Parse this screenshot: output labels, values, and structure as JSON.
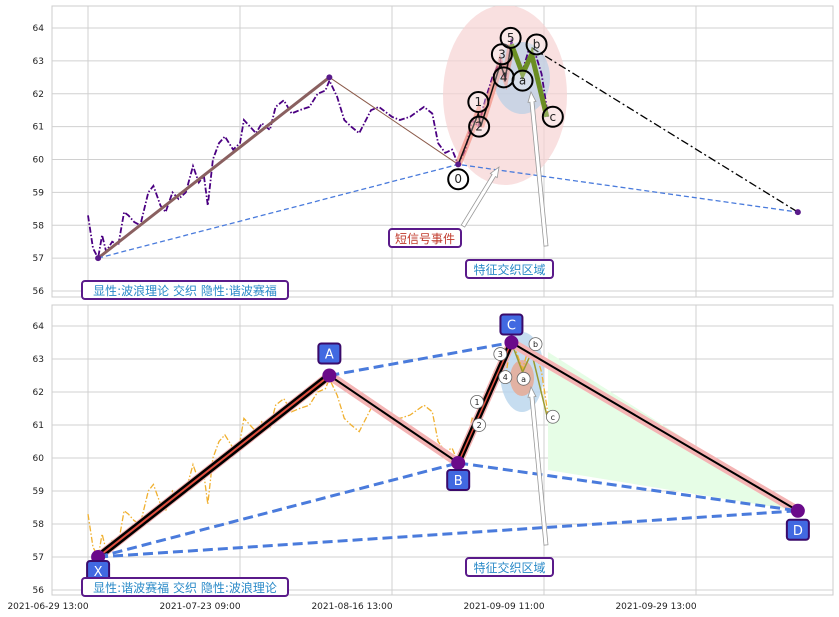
{
  "chart_data": [
    {
      "type": "line",
      "panel": "top",
      "ylim": [
        55.8,
        64.6
      ],
      "yticks": [
        56,
        57,
        58,
        59,
        60,
        61,
        62,
        63,
        64
      ],
      "grid": true,
      "colors": {
        "price": "#4b0082",
        "xab": "#8b5a4a",
        "xbd": "#4a7bdc",
        "wave": "#111111",
        "wave_impulse_halo": "#f08070",
        "wave_correction": "#6b8e23",
        "projection": "#000000",
        "zone_pink": "#f6d3d3",
        "zone_blue": "#b8cfe6"
      },
      "price_series": {
        "x": [
          "2021-06-29 13:00",
          "2021-06-30 08:00",
          "2021-07-01 03:00",
          "2021-07-01 18:00",
          "2021-07-02 09:00",
          "2021-07-03 08:00",
          "2021-07-04 07:00",
          "2021-07-05 05:00",
          "2021-07-05 21:00",
          "2021-07-06 19:00",
          "2021-07-07 18:00",
          "2021-07-09 00:00",
          "2021-07-09 19:00",
          "2021-07-10 22:00",
          "2021-07-11 17:00",
          "2021-07-12 19:00",
          "2021-07-13 18:00",
          "2021-07-14 21:00",
          "2021-07-16 00:00",
          "2021-07-16 22:00",
          "2021-07-17 17:00",
          "2021-07-18 08:00",
          "2021-07-19 03:00",
          "2021-07-20 02:00",
          "2021-07-21 00:00",
          "2021-07-22 07:00",
          "2021-07-23 09:00",
          "2021-07-24 00:00",
          "2021-07-24 23:00",
          "2021-07-25 22:00",
          "2021-07-26 20:00",
          "2021-07-28 03:00",
          "2021-07-29 01:00",
          "2021-07-30 08:00",
          "2021-07-31 14:00",
          "2021-08-01 20:00",
          "2021-08-03 10:00",
          "2021-08-04 17:00",
          "2021-08-05 23:00",
          "2021-08-06 14:00",
          "2021-08-07 20:00",
          "2021-08-08 23:00",
          "2021-08-10 01:00",
          "2021-08-11 08:00",
          "2021-08-13 05:00",
          "2021-08-14 11:00",
          "2021-08-16 13:00",
          "2021-08-17 19:00",
          "2021-08-19 09:00",
          "2021-08-21 14:00",
          "2021-08-22 21:00",
          "2021-08-23 19:00",
          "2021-08-24 22:00",
          "2021-08-26 00:00",
          "2021-08-26 23:00",
          "2021-08-28 02:00",
          "2021-08-29 04:00",
          "2021-08-30 03:00",
          "2021-08-31 05:00",
          "2021-09-01 08:00",
          "2021-09-02 14:00",
          "2021-09-03 09:00",
          "2021-09-04 08:00",
          "2021-09-05 03:00",
          "2021-09-06 02:00",
          "2021-09-07 00:00",
          "2021-09-08 03:00",
          "2021-09-09 02:00",
          "2021-09-10 00:00"
        ],
        "y": [
          58.3,
          57.3,
          57.0,
          57.7,
          57.2,
          57.5,
          57.4,
          58.4,
          58.3,
          58.1,
          58.0,
          59.0,
          59.2,
          58.6,
          58.4,
          59.0,
          58.8,
          59.0,
          59.8,
          59.3,
          59.5,
          58.6,
          60.0,
          60.5,
          60.7,
          60.3,
          60.5,
          61.2,
          61.0,
          60.8,
          61.1,
          60.9,
          61.6,
          61.8,
          61.4,
          61.5,
          61.6,
          62.0,
          62.1,
          62.4,
          61.9,
          61.2,
          61.0,
          60.8,
          61.5,
          61.6,
          61.3,
          61.2,
          61.3,
          61.6,
          61.4,
          60.5,
          60.2,
          60.3,
          59.85,
          60.3,
          61.2,
          61.0,
          61.8,
          62.5,
          63.0,
          62.4,
          63.6,
          63.2,
          62.7,
          63.3,
          63.2,
          62.6,
          61.3
        ]
      },
      "pivots": [
        {
          "x": "2021-07-01 03:00",
          "y": 57.0
        },
        {
          "x": "2021-08-06 14:00",
          "y": 62.5
        },
        {
          "x": "2021-08-26 23:00",
          "y": 59.85
        },
        {
          "x": "2021-10-13 00:00",
          "y": 58.4
        }
      ],
      "projection": [
        {
          "x": "2021-09-07 12:00",
          "y": 63.4
        },
        {
          "x": "2021-10-13 00:00",
          "y": 58.4
        }
      ],
      "wave_path": [
        {
          "x": "2021-08-26 23:00",
          "y": 59.85
        },
        {
          "x": "2021-08-30 03:00",
          "y": 61.4
        },
        {
          "x": "2021-08-30 12:00",
          "y": 61.0
        },
        {
          "x": "2021-09-02 14:00",
          "y": 62.9
        },
        {
          "x": "2021-09-03 09:00",
          "y": 62.5
        },
        {
          "x": "2021-09-04 08:00",
          "y": 63.5
        }
      ],
      "correction_path": [
        {
          "x": "2021-09-04 08:00",
          "y": 63.5
        },
        {
          "x": "2021-09-06 02:00",
          "y": 62.6
        },
        {
          "x": "2021-09-07 12:00",
          "y": 63.2
        },
        {
          "x": "2021-09-09 20:00",
          "y": 61.3
        }
      ],
      "wave_labels": [
        {
          "label": "0",
          "x": "2021-08-26 23:00",
          "y": 59.4
        },
        {
          "label": "1",
          "x": "2021-08-30 03:00",
          "y": 61.75
        },
        {
          "label": "2",
          "x": "2021-08-30 06:00",
          "y": 61.0
        },
        {
          "label": "3",
          "x": "2021-09-02 20:00",
          "y": 63.2
        },
        {
          "label": "4",
          "x": "2021-09-03 03:00",
          "y": 62.5
        },
        {
          "label": "5",
          "x": "2021-09-04 05:00",
          "y": 63.7
        },
        {
          "label": "a",
          "x": "2021-09-06 02:00",
          "y": 62.4
        },
        {
          "label": "b",
          "x": "2021-09-08 07:00",
          "y": 63.5
        },
        {
          "label": "c",
          "x": "2021-09-10 15:00",
          "y": 61.3
        }
      ],
      "annotations": {
        "signal": "短信号事件",
        "zone": "特征交织区域",
        "legend": "显性:波浪理论 交织 隐性:谐波赛福"
      }
    },
    {
      "type": "line",
      "panel": "bottom",
      "ylim": [
        55.8,
        64.6
      ],
      "yticks": [
        56,
        57,
        58,
        59,
        60,
        61,
        62,
        63,
        64
      ],
      "grid": true,
      "colors": {
        "price": "#f0b030",
        "xabcd": "#000000",
        "xabcd_core": "#e05040",
        "xabcd_halo": "#f4b4b4",
        "dashed": "#4a7bdc",
        "marker": "#6a0a8a",
        "label_box": "#4169e1",
        "prz_fill": "#e6fde6"
      },
      "xticks": [
        "2021-06-29 13:00",
        "2021-07-23 09:00",
        "2021-08-16 13:00",
        "2021-09-09 11:00",
        "2021-09-29 13:00"
      ],
      "points": [
        {
          "label": "X",
          "x": "2021-07-01 03:00",
          "y": 57.0
        },
        {
          "label": "A",
          "x": "2021-08-06 14:00",
          "y": 62.5
        },
        {
          "label": "B",
          "x": "2021-08-26 23:00",
          "y": 59.85
        },
        {
          "label": "C",
          "x": "2021-09-04 08:00",
          "y": 63.5
        },
        {
          "label": "D",
          "x": "2021-10-13 00:00",
          "y": 58.4
        }
      ],
      "wave_labels": [
        {
          "label": "1",
          "x": "2021-08-29 22:00",
          "y": 61.7
        },
        {
          "label": "2",
          "x": "2021-08-30 06:00",
          "y": 61.0
        },
        {
          "label": "3",
          "x": "2021-09-02 14:00",
          "y": 63.15
        },
        {
          "label": "4",
          "x": "2021-09-03 09:00",
          "y": 62.45
        },
        {
          "label": "a",
          "x": "2021-09-06 06:00",
          "y": 62.4
        },
        {
          "label": "b",
          "x": "2021-09-08 03:00",
          "y": 63.45
        },
        {
          "label": "c",
          "x": "2021-09-10 15:00",
          "y": 61.25
        }
      ],
      "annotations": {
        "zone": "特征交织区域",
        "legend": "显性:谐波赛福 交织 隐性:波浪理论"
      }
    }
  ]
}
